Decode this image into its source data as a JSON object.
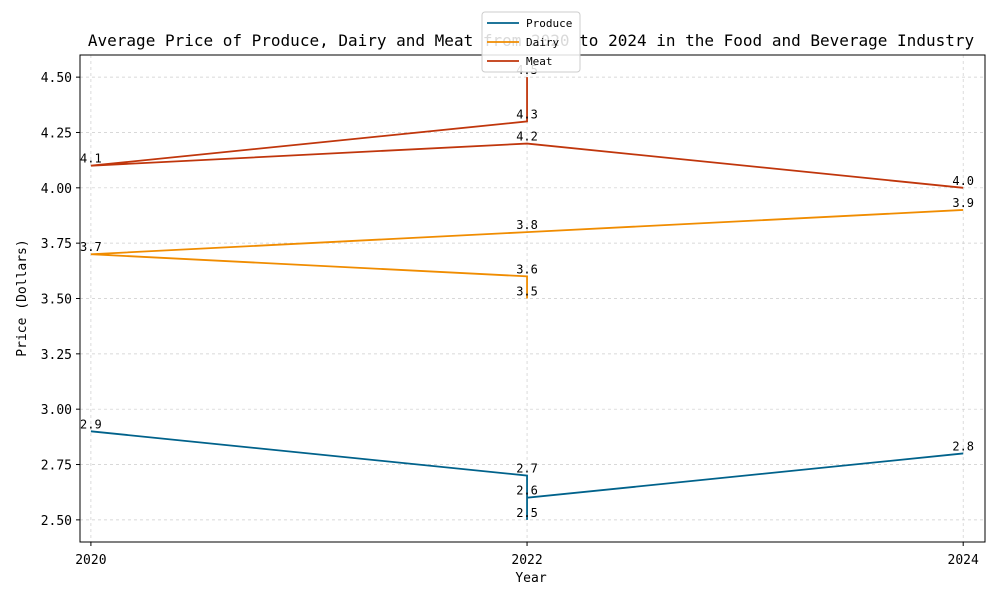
{
  "chart_data": {
    "type": "line",
    "title": "Average Price of Produce, Dairy and Meat from 2020 to 2024 in the Food and Beverage Industry",
    "xlabel": "Year",
    "ylabel": "Price (Dollars)",
    "xlim": [
      2019.95,
      2024.1
    ],
    "ylim": [
      2.4,
      4.6
    ],
    "xticks": [
      2020,
      2022,
      2024
    ],
    "yticks": [
      2.5,
      2.75,
      3.0,
      3.25,
      3.5,
      3.75,
      4.0,
      4.25,
      4.5
    ],
    "ytick_labels": [
      "2.50",
      "2.75",
      "3.00",
      "3.25",
      "3.50",
      "3.75",
      "4.00",
      "4.25",
      "4.50"
    ],
    "grid": true,
    "legend_position": "top-center",
    "series": [
      {
        "name": "Produce",
        "color": "#00628b",
        "x": [
          2020,
          2022,
          2022,
          2022,
          2024
        ],
        "y": [
          2.9,
          2.7,
          2.5,
          2.6,
          2.8
        ],
        "labels": [
          "2.9",
          "2.7",
          "2.5",
          "2.6",
          "2.8"
        ]
      },
      {
        "name": "Dairy",
        "color": "#f08c00",
        "x": [
          2022,
          2022,
          2020,
          2022,
          2024
        ],
        "y": [
          3.5,
          3.6,
          3.7,
          3.8,
          3.9
        ],
        "labels": [
          "3.5",
          "3.6",
          "3.7",
          "3.8",
          "3.9"
        ]
      },
      {
        "name": "Meat",
        "color": "#c0360c",
        "x": [
          2022,
          2022,
          2020,
          2022,
          2024
        ],
        "y": [
          4.5,
          4.3,
          4.1,
          4.2,
          4.0
        ],
        "labels": [
          "4.5",
          "4.3",
          "4.1",
          "4.2",
          "4.0"
        ]
      }
    ]
  }
}
